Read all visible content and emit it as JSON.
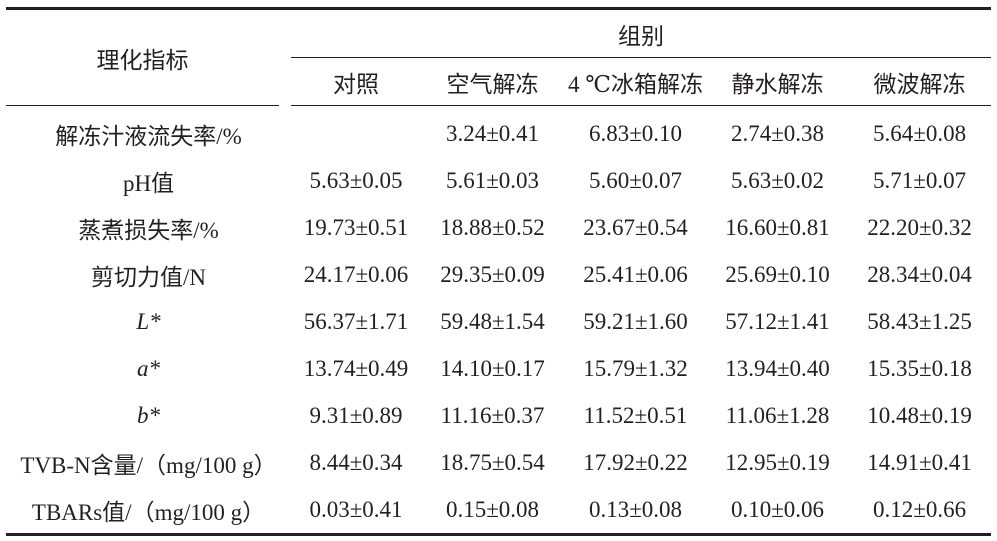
{
  "table": {
    "corner": "理化指标",
    "group": "组别",
    "columns": [
      "对照",
      "空气解冻",
      "4 ℃冰箱解冻",
      "静水解冻",
      "微波解冻"
    ],
    "rows": [
      [
        "解冻汁液流失率/%",
        null,
        "3.24±0.41",
        "6.83±0.10",
        "2.74±0.38",
        "5.64±0.08"
      ],
      [
        "pH值",
        "5.63±0.05",
        "5.61±0.03",
        "5.60±0.07",
        "5.63±0.02",
        "5.71±0.07"
      ],
      [
        "蒸煮损失率/%",
        "19.73±0.51",
        "18.88±0.52",
        "23.67±0.54",
        "16.60±0.81",
        "22.20±0.32"
      ],
      [
        "剪切力值/N",
        "24.17±0.06",
        "29.35±0.09",
        "25.41±0.06",
        "25.69±0.10",
        "28.34±0.04"
      ],
      [
        "L*",
        "56.37±1.71",
        "59.48±1.54",
        "59.21±1.60",
        "57.12±1.41",
        "58.43±1.25"
      ],
      [
        "a*",
        "13.74±0.49",
        "14.10±0.17",
        "15.79±1.32",
        "13.94±0.40",
        "15.35±0.18"
      ],
      [
        "b*",
        "9.31±0.89",
        "11.16±0.37",
        "11.52±0.51",
        "11.06±1.28",
        "10.48±0.19"
      ],
      [
        "TVB-N含量/（mg/100 g）",
        "8.44±0.34",
        "18.75±0.54",
        "17.92±0.22",
        "12.95±0.19",
        "14.91±0.41"
      ],
      [
        "TBARs值/（mg/100 g）",
        "0.03±0.41",
        "0.15±0.08",
        "0.13±0.08",
        "0.10±0.06",
        "0.12±0.66"
      ]
    ]
  }
}
